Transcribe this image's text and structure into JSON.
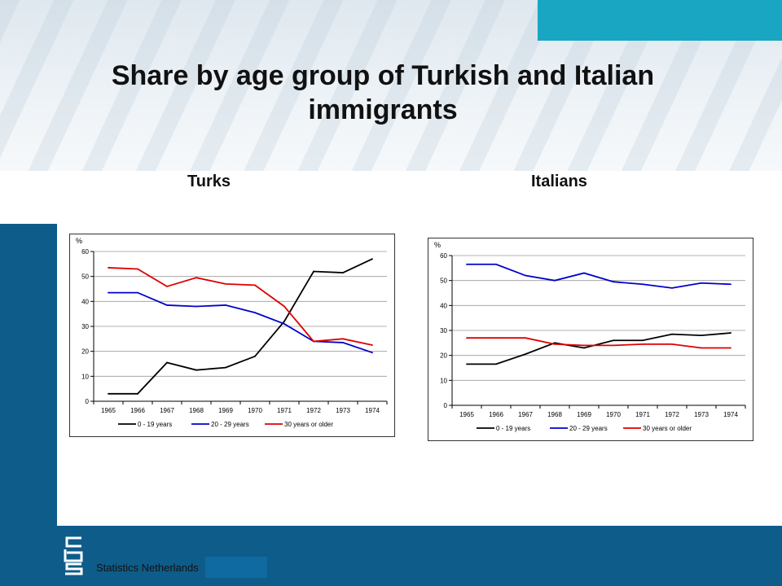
{
  "title": "Share by age group of Turkish and Italian immigrants",
  "footer": {
    "org": "Statistics Netherlands"
  },
  "colors": {
    "band": "#0d5c8a",
    "accent": "#19a6c2"
  },
  "chart_data": [
    {
      "type": "line",
      "title": "Turks",
      "ylabel": "%",
      "ylim": [
        0,
        60
      ],
      "yticks": [
        0,
        10,
        20,
        30,
        40,
        50,
        60
      ],
      "grid": true,
      "legend": "bottom",
      "categories": [
        "1965",
        "1966",
        "1967",
        "1968",
        "1969",
        "1970",
        "1971",
        "1972",
        "1973",
        "1974"
      ],
      "series": [
        {
          "name": "0 - 19 years",
          "color": "#000000",
          "values": [
            3,
            3,
            15.5,
            12.5,
            13.5,
            18,
            32,
            52,
            51.5,
            57
          ]
        },
        {
          "name": "20 - 29 years",
          "color": "#0000cc",
          "values": [
            43.5,
            43.5,
            38.5,
            38,
            38.5,
            35.5,
            31,
            24,
            23.5,
            19.5
          ]
        },
        {
          "name": "30 years or older",
          "color": "#dd0000",
          "values": [
            53.5,
            53,
            46,
            49.5,
            47,
            46.5,
            38,
            24,
            25,
            22.5
          ]
        }
      ]
    },
    {
      "type": "line",
      "title": "Italians",
      "ylabel": "%",
      "ylim": [
        0,
        60
      ],
      "yticks": [
        0,
        10,
        20,
        30,
        40,
        50,
        60
      ],
      "grid": true,
      "legend": "bottom",
      "categories": [
        "1965",
        "1966",
        "1967",
        "1968",
        "1969",
        "1970",
        "1971",
        "1972",
        "1973",
        "1974"
      ],
      "series": [
        {
          "name": "0 - 19 years",
          "color": "#000000",
          "values": [
            16.5,
            16.5,
            20.5,
            25,
            23,
            26,
            26,
            28.5,
            28,
            29
          ]
        },
        {
          "name": "20 - 29 years",
          "color": "#0000cc",
          "values": [
            56.5,
            56.5,
            52,
            50,
            53,
            49.5,
            48.5,
            47,
            49,
            48.5
          ]
        },
        {
          "name": "30 years or older",
          "color": "#dd0000",
          "values": [
            27,
            27,
            27,
            24.5,
            24,
            24,
            24.5,
            24.5,
            23,
            23
          ]
        }
      ]
    }
  ]
}
